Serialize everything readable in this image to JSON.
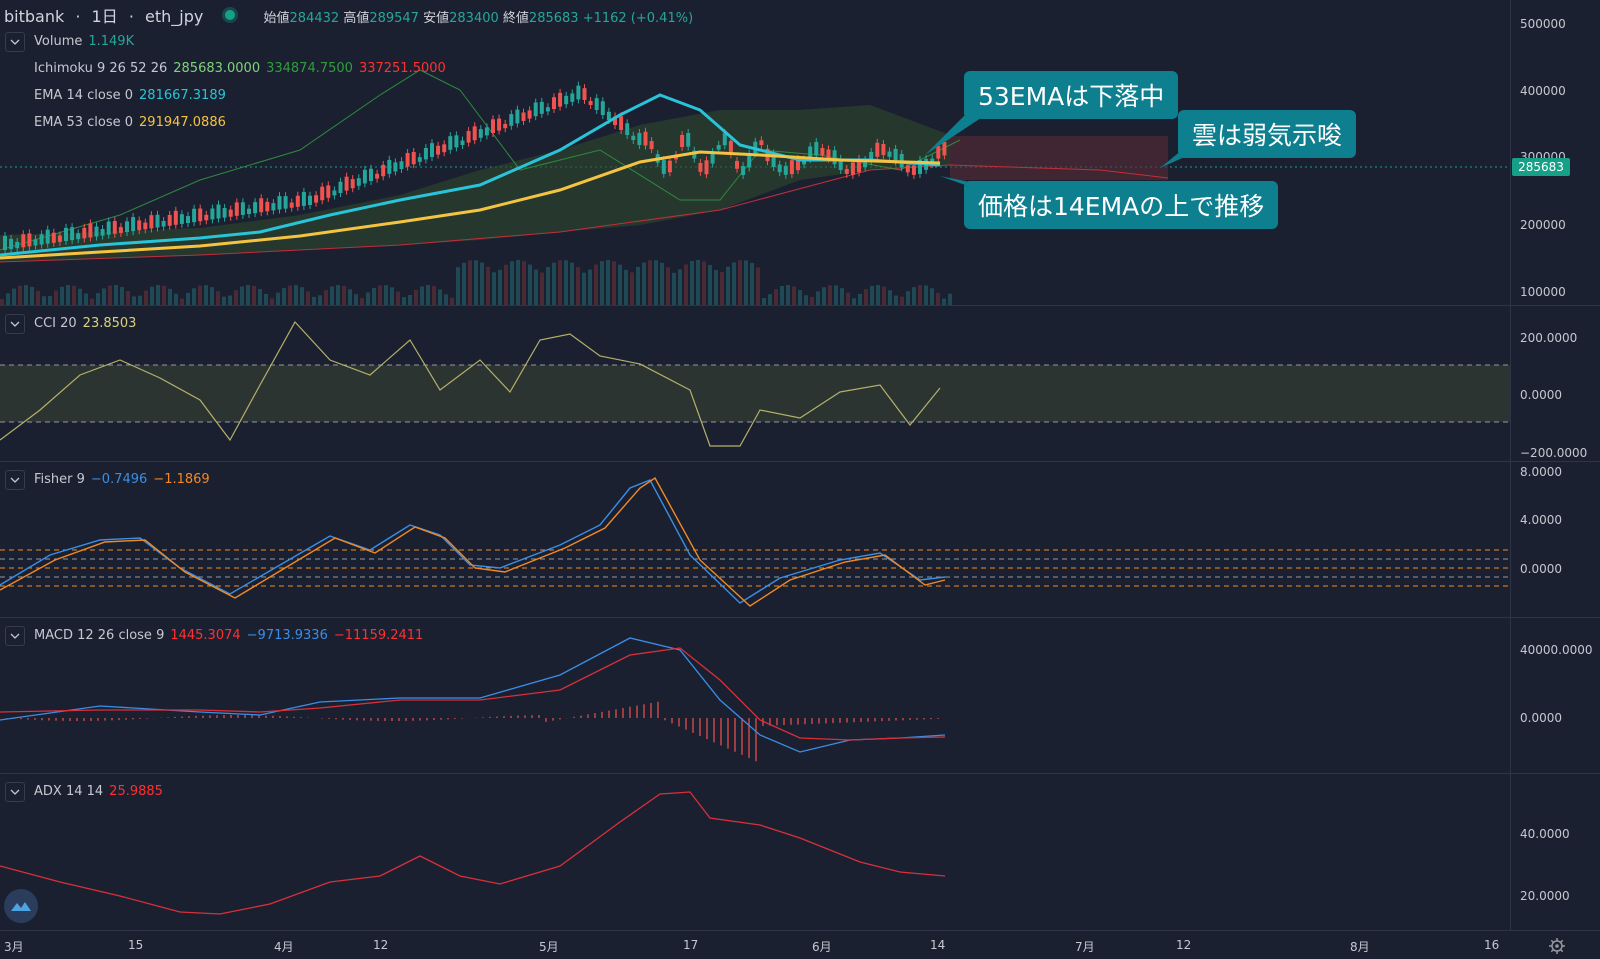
{
  "header": {
    "exchange": "bitbank",
    "interval": "1日",
    "symbol": "eth_jpy",
    "open_label": "始値",
    "open": "284432",
    "high_label": "高値",
    "high": "289547",
    "low_label": "安値",
    "low": "283400",
    "close_label": "終値",
    "close": "285683",
    "change": "+1162 (+0.41%)"
  },
  "main_pane": {
    "volume": {
      "name": "Volume",
      "value": "1.149K"
    },
    "ichimoku": {
      "name": "Ichimoku 9 26 52 26",
      "v1": "285683.0000",
      "v2": "334874.7500",
      "v3": "337251.5000"
    },
    "ema14": {
      "name": "EMA 14 close 0",
      "value": "281667.3189"
    },
    "ema53": {
      "name": "EMA 53 close 0",
      "value": "291947.0886"
    },
    "y_ticks": [
      "500000",
      "400000",
      "300000",
      "200000",
      "100000"
    ],
    "last_price": "285683"
  },
  "callouts": {
    "ema53": "53EMAは下落中",
    "cloud": "雲は弱気示唆",
    "price": "価格は14EMAの上で推移"
  },
  "cci_pane": {
    "name": "CCI 20",
    "value": "23.8503",
    "y_ticks": [
      "200.0000",
      "0.0000",
      "−200.0000"
    ]
  },
  "fisher_pane": {
    "name": "Fisher 9",
    "v1": "−0.7496",
    "v2": "−1.1869",
    "y_ticks": [
      "8.0000",
      "4.0000",
      "0.0000"
    ]
  },
  "macd_pane": {
    "name": "MACD 12 26 close 9",
    "v1": "1445.3074",
    "v2": "−9713.9336",
    "v3": "−11159.2411",
    "y_ticks": [
      "40000.0000",
      "0.0000"
    ]
  },
  "adx_pane": {
    "name": "ADX 14 14",
    "value": "25.9885",
    "y_ticks": [
      "40.0000",
      "20.0000"
    ]
  },
  "date_axis": [
    "3月",
    "15",
    "4月",
    "12",
    "5月",
    "17",
    "6月",
    "14",
    "7月",
    "12",
    "8月",
    "16"
  ],
  "icons": {
    "collapse": "chevron-down-icon",
    "logo": "tradingview-logo-icon",
    "settings": "gear-icon",
    "status": "market-open-dot-icon"
  },
  "colors": {
    "background": "#1b2030",
    "up": "#26a69a",
    "down": "#ef5350",
    "ema14": "#29c4d9",
    "ema53": "#f5c342",
    "callout": "#0d7f8f"
  }
}
